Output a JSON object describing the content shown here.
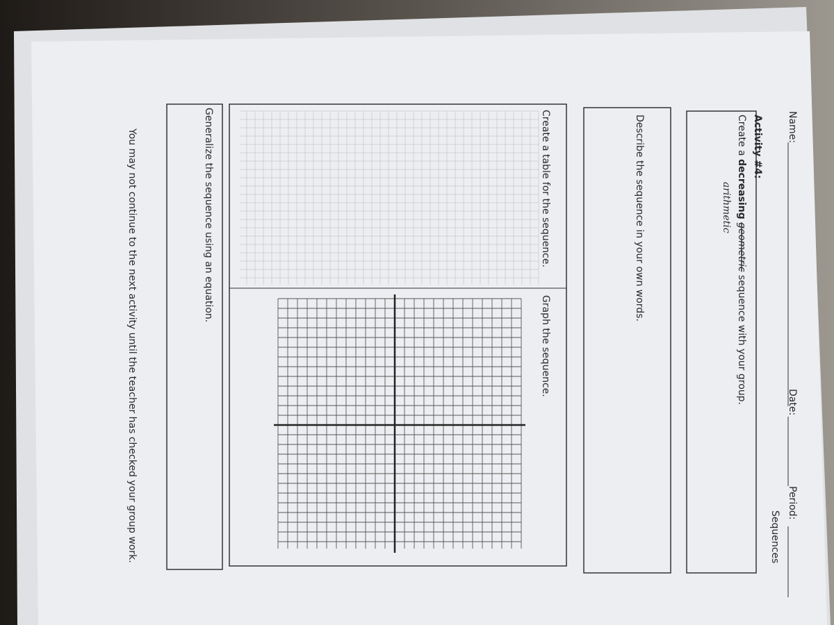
{
  "header": {
    "name_label": "Name:",
    "date_label": "Date:",
    "period_label": "Period:",
    "unit": "Sequences"
  },
  "activity": {
    "title": "Activity #4:",
    "prompt_start": "Create a",
    "emphasis": "decreasing",
    "crossed_out": "geometric",
    "prompt_end": "sequence with your group.",
    "handwritten": "arithmetic"
  },
  "sections": {
    "describe": "Describe the sequence in your own words.",
    "table": "Create a table for the sequence.",
    "graph": "Graph the sequence.",
    "equation": "Generalize the sequence using an equation."
  },
  "footer": "You may not continue to the next activity until the teacher has checked your group work."
}
